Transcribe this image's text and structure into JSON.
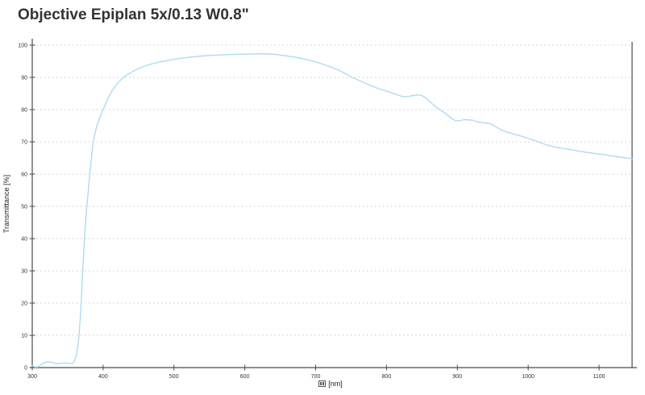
{
  "title": "Objective Epiplan 5x/0.13 W0.8\"",
  "chart_data": {
    "type": "line",
    "title": "Objective Epiplan 5x/0.13 W0.8\"",
    "xlabel": "[nm]",
    "xlabel_prefix_glyph": "missing-glyph-box",
    "ylabel": "Transmittance [%]",
    "xlim": [
      300,
      1147
    ],
    "ylim": [
      0,
      100
    ],
    "x_ticks": [
      300,
      400,
      500,
      600,
      700,
      800,
      900,
      1000,
      1100
    ],
    "y_ticks": [
      0,
      10,
      20,
      30,
      40,
      50,
      60,
      70,
      80,
      90,
      100
    ],
    "grid": "horizontal dotted lines at every 10%",
    "legend": "none",
    "line_color": "#aad9f1",
    "axis_color": "#4a4a4a",
    "grid_color": "#c9c9c9",
    "tick_label_color": "#333333",
    "series": [
      {
        "name": "Transmittance",
        "points": [
          [
            300,
            0.6
          ],
          [
            304,
            0.15
          ],
          [
            308,
            0.2
          ],
          [
            313,
            1.0
          ],
          [
            318,
            1.6
          ],
          [
            323,
            1.8
          ],
          [
            328,
            1.6
          ],
          [
            334,
            1.2
          ],
          [
            340,
            1.3
          ],
          [
            347,
            1.5
          ],
          [
            352,
            1.3
          ],
          [
            356,
            1.2
          ],
          [
            359,
            1.8
          ],
          [
            362,
            3.5
          ],
          [
            364,
            6
          ],
          [
            366,
            10
          ],
          [
            368,
            16
          ],
          [
            370,
            24
          ],
          [
            372,
            33
          ],
          [
            374,
            41
          ],
          [
            376,
            47
          ],
          [
            378,
            52
          ],
          [
            380,
            57
          ],
          [
            382,
            62
          ],
          [
            384,
            66
          ],
          [
            386,
            70
          ],
          [
            389,
            73
          ],
          [
            392,
            75.5
          ],
          [
            396,
            78
          ],
          [
            400,
            80
          ],
          [
            404,
            82
          ],
          [
            408,
            84
          ],
          [
            413,
            86
          ],
          [
            418,
            87.5
          ],
          [
            424,
            89
          ],
          [
            430,
            90.2
          ],
          [
            437,
            91.2
          ],
          [
            445,
            92.2
          ],
          [
            455,
            93.2
          ],
          [
            465,
            94
          ],
          [
            478,
            94.7
          ],
          [
            492,
            95.3
          ],
          [
            508,
            95.9
          ],
          [
            524,
            96.3
          ],
          [
            542,
            96.7
          ],
          [
            560,
            96.9
          ],
          [
            580,
            97.1
          ],
          [
            600,
            97.2
          ],
          [
            618,
            97.3
          ],
          [
            632,
            97.3
          ],
          [
            645,
            97.1
          ],
          [
            658,
            96.7
          ],
          [
            670,
            96.3
          ],
          [
            682,
            95.8
          ],
          [
            694,
            95.2
          ],
          [
            706,
            94.4
          ],
          [
            718,
            93.5
          ],
          [
            730,
            92.5
          ],
          [
            740,
            91.4
          ],
          [
            750,
            90.2
          ],
          [
            760,
            89.2
          ],
          [
            772,
            88
          ],
          [
            784,
            86.9
          ],
          [
            796,
            86
          ],
          [
            806,
            85.3
          ],
          [
            815,
            84.6
          ],
          [
            822,
            84.1
          ],
          [
            828,
            84.0
          ],
          [
            836,
            84.3
          ],
          [
            844,
            84.6
          ],
          [
            850,
            84.4
          ],
          [
            856,
            83.5
          ],
          [
            862,
            82.3
          ],
          [
            868,
            81.2
          ],
          [
            874,
            80.2
          ],
          [
            880,
            79.3
          ],
          [
            886,
            78.3
          ],
          [
            892,
            77.3
          ],
          [
            898,
            76.5
          ],
          [
            904,
            76.6
          ],
          [
            910,
            76.9
          ],
          [
            916,
            76.8
          ],
          [
            922,
            76.7
          ],
          [
            928,
            76.2
          ],
          [
            934,
            76.0
          ],
          [
            940,
            75.8
          ],
          [
            946,
            75.7
          ],
          [
            952,
            75.0
          ],
          [
            958,
            74.2
          ],
          [
            964,
            73.5
          ],
          [
            972,
            72.9
          ],
          [
            980,
            72.4
          ],
          [
            990,
            71.8
          ],
          [
            1000,
            71.1
          ],
          [
            1012,
            70.2
          ],
          [
            1024,
            69.2
          ],
          [
            1036,
            68.5
          ],
          [
            1048,
            68.0
          ],
          [
            1060,
            67.6
          ],
          [
            1072,
            67.1
          ],
          [
            1084,
            66.7
          ],
          [
            1096,
            66.3
          ],
          [
            1108,
            66.0
          ],
          [
            1120,
            65.6
          ],
          [
            1132,
            65.2
          ],
          [
            1142,
            64.9
          ],
          [
            1147,
            64.8
          ]
        ]
      }
    ]
  }
}
